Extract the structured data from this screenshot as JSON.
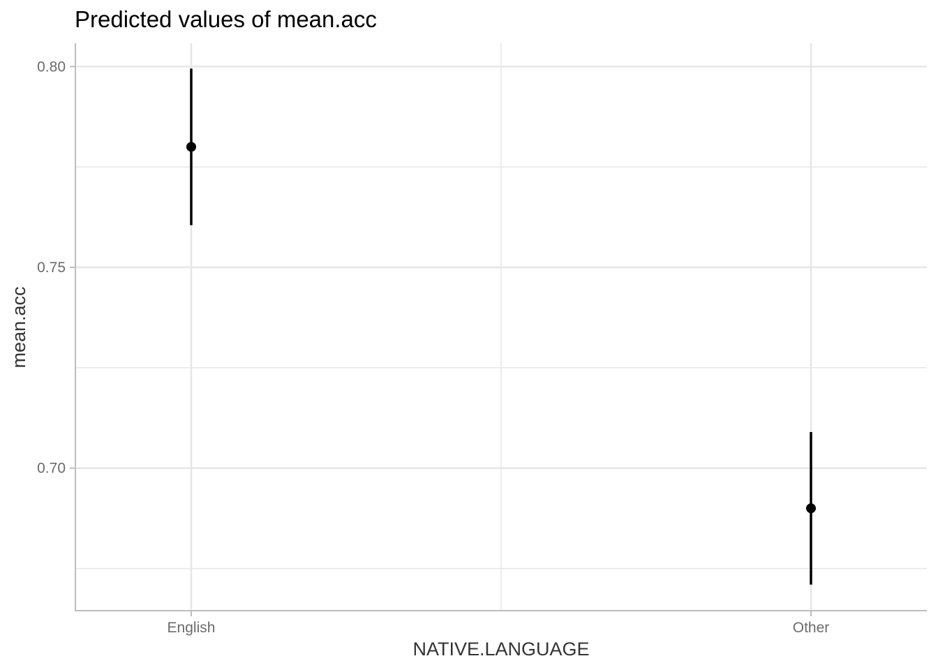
{
  "chart_data": {
    "type": "scatter",
    "title": "Predicted values of mean.acc",
    "xlabel": "NATIVE.LANGUAGE",
    "ylabel": "mean.acc",
    "categories": [
      "English",
      "Other"
    ],
    "series": [
      {
        "points": [
          {
            "x": "English",
            "y": 0.78,
            "ci_low": 0.7605,
            "ci_high": 0.7995
          },
          {
            "x": "Other",
            "y": 0.69,
            "ci_low": 0.671,
            "ci_high": 0.709
          }
        ]
      }
    ],
    "ylim": [
      0.6645,
      0.8058
    ],
    "y_ticks": [
      {
        "value": 0.8,
        "label": "0.80"
      },
      {
        "value": 0.75,
        "label": "0.75"
      },
      {
        "value": 0.7,
        "label": "0.70"
      }
    ],
    "y_minor_ticks": [
      0.775,
      0.725,
      0.675
    ],
    "grid": true,
    "colors": {
      "point": "#000000",
      "grid": "#e6e6e6",
      "axis": "#bdbdbd"
    }
  }
}
